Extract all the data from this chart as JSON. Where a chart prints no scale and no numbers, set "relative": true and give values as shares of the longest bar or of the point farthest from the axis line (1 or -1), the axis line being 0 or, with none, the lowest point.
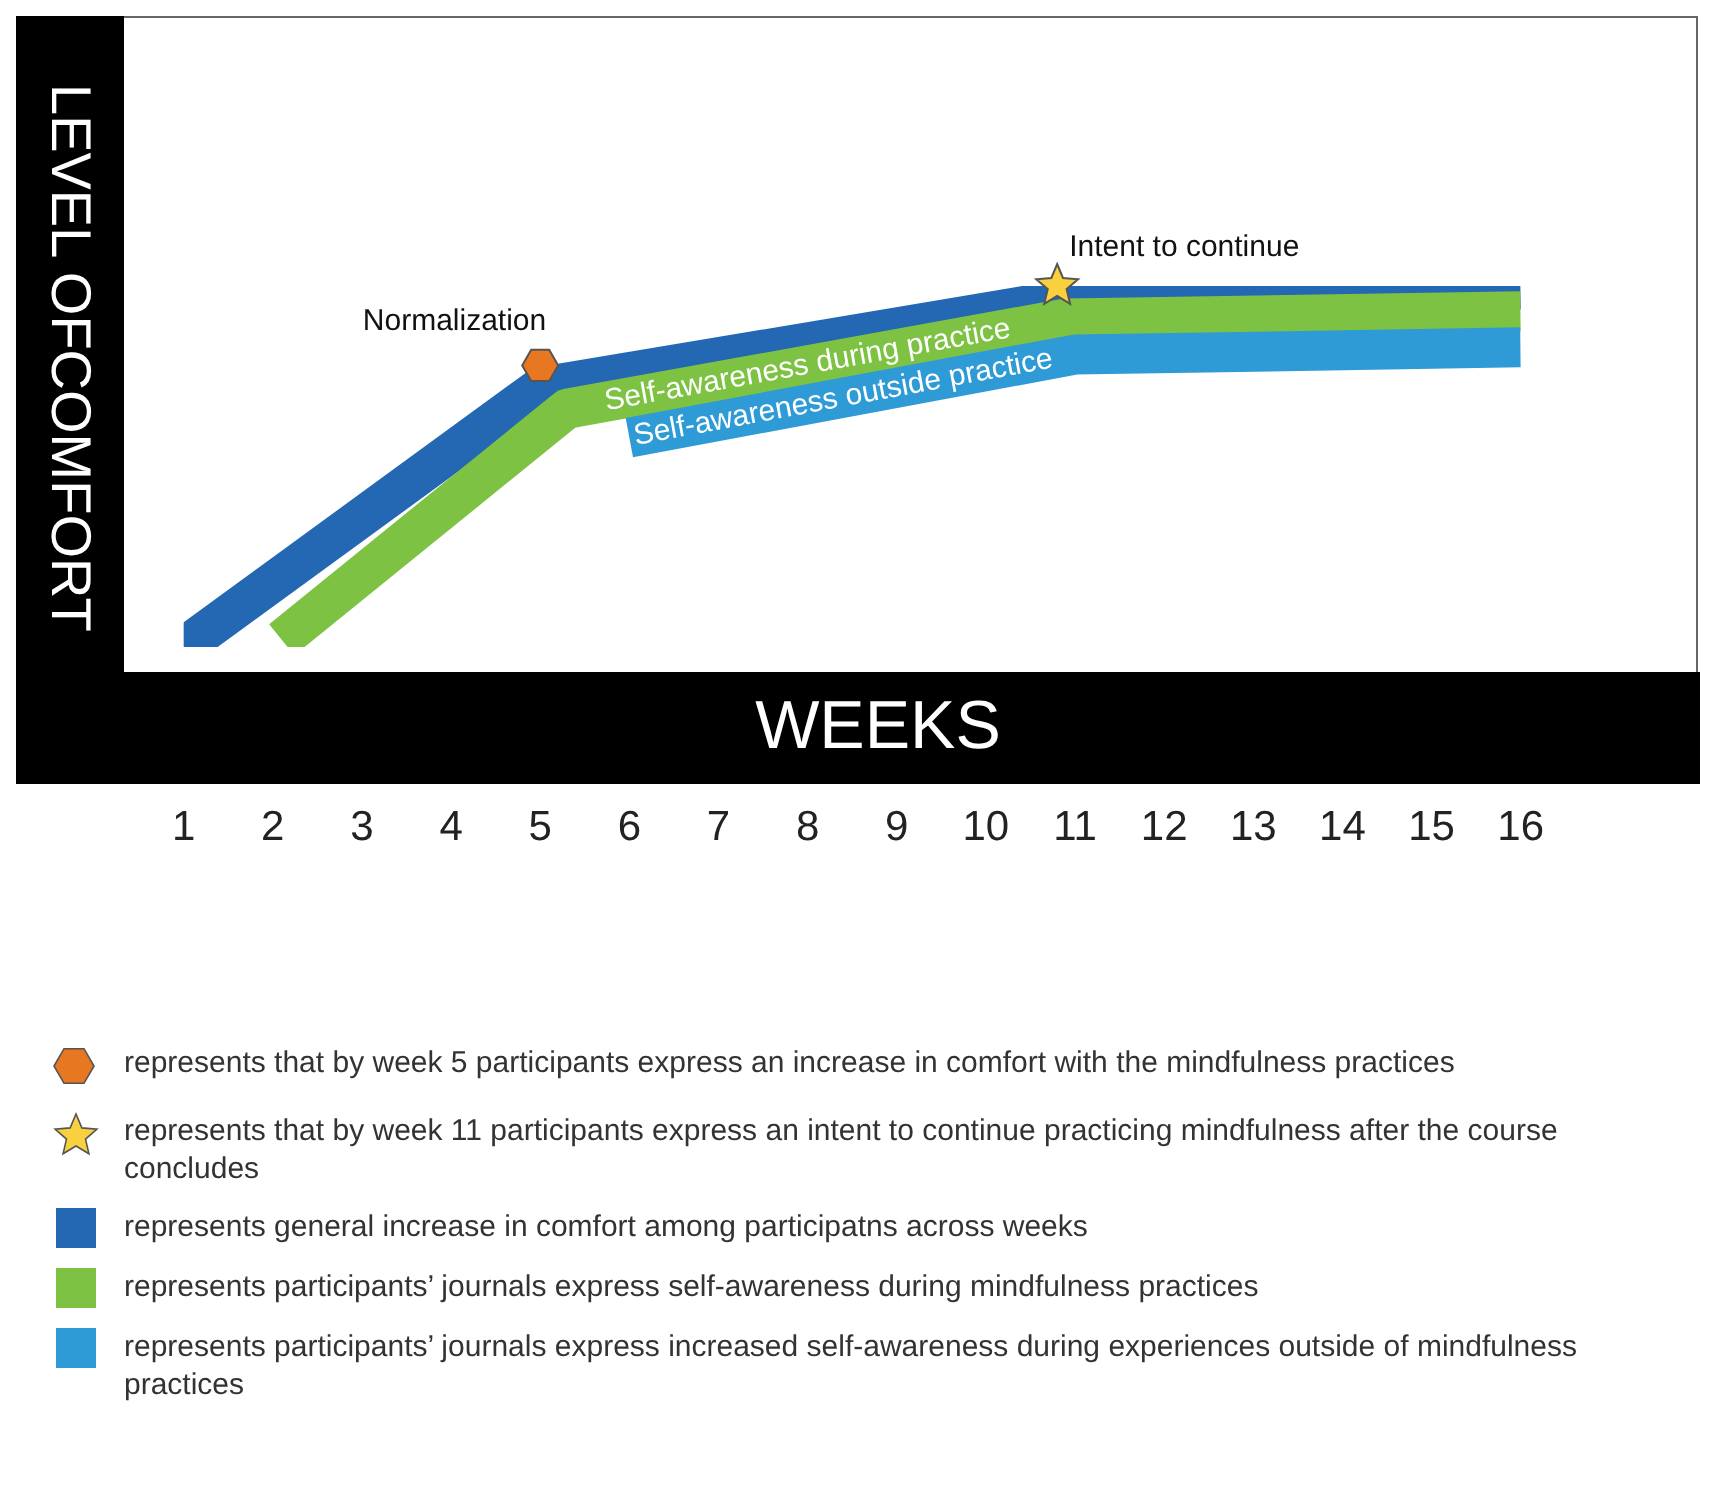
{
  "chart_data": {
    "type": "line",
    "relative": true,
    "ylabel": "LEVEL OFCOMFORT",
    "xlabel": "WEEKS",
    "xlim": [
      1,
      16
    ],
    "xticks": [
      1,
      2,
      3,
      4,
      5,
      6,
      7,
      8,
      9,
      10,
      11,
      12,
      13,
      14,
      15,
      16
    ],
    "legend": "bottom",
    "line_style": "solid",
    "marker": "none",
    "series": [
      {
        "name": "represents that by week 5 participants express an increase in comfort with the mindfulness practices",
        "type": "scatter",
        "color": "#e87722",
        "x": [
          5
        ],
        "values": [
          0.78
        ]
      },
      {
        "name": "represents that by week 11 participants express an intent to continue practicing mindfulness after the course concludes",
        "type": "scatter",
        "marker": "star",
        "color": "#f9d13e",
        "x": [
          10.8
        ],
        "values": [
          1
        ]
      },
      {
        "name": "represents general increase in comfort among participatns across weeks",
        "color": "#2467b3",
        "x": [
          1,
          5,
          10.8,
          16
        ],
        "values": [
          0,
          0.72,
          0.96,
          0.99
        ]
      },
      {
        "name": "represents participants’ journals express self-awareness during mindfulness practices",
        "color": "#7dc242",
        "x": [
          2.1,
          5.3,
          10.9,
          16
        ],
        "values": [
          0.02,
          0.66,
          0.91,
          0.93
        ]
      },
      {
        "name": "represents participants’ journals express increased self-awareness during experiences outside of mindfulness practices",
        "color": "#2e9bd6",
        "x": [
          6,
          11,
          16
        ],
        "values": [
          0.58,
          0.81,
          0.83
        ]
      }
    ],
    "annotations": [
      {
        "text": "Normalization",
        "x": 5,
        "y": 0.78
      },
      {
        "text": "Intent to continue",
        "x": 10.8,
        "y": 1
      },
      {
        "text": "Self-awareness during practice",
        "x": 8,
        "y": 0.78
      },
      {
        "text": "Self-awareness outside practice",
        "x": 8.4,
        "y": 0.69
      }
    ]
  }
}
